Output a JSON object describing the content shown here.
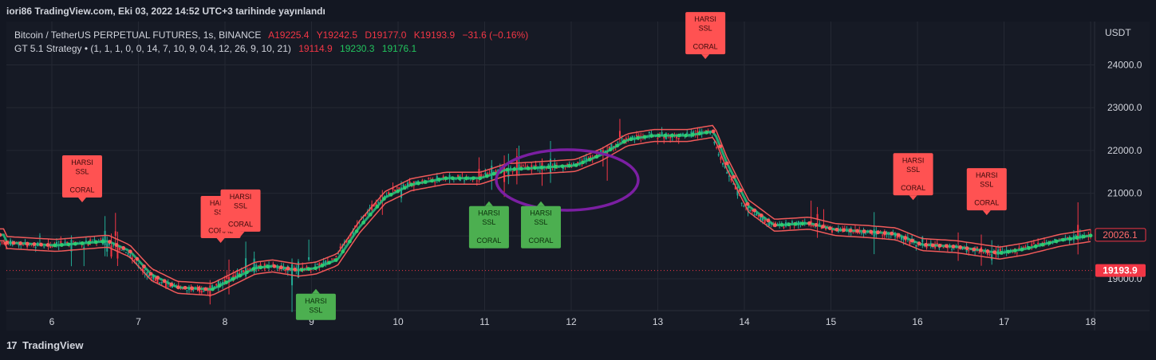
{
  "header": {
    "published": "iori86 TradingView.com, Eki 03, 2022 14:52 UTC+3 tarihinde yayınlandı"
  },
  "legend": {
    "symbol": "Bitcoin / TetherUS PERPETUAL FUTURES, 1s, BINANCE",
    "open": "A19225.4",
    "high": "Y19242.5",
    "low": "D19177.0",
    "close": "K19193.9",
    "change": "−31.6 (−0.16%)",
    "strategy": "GT 5.1 Strategy • (1, 1, 1, 0, 0, 14, 7, 10, 9, 0.4, 12, 26, 9, 10, 21)",
    "v1": "19114.9",
    "v2": "19230.3",
    "v3": "19176.1"
  },
  "footer": {
    "logo": "17",
    "brand": "TradingView"
  },
  "colors": {
    "bg": "#161a25",
    "up": "#22ab94",
    "down": "#f23645",
    "band": "#f05a5a",
    "signal_green": "#4caf50",
    "signal_red": "#ff5252",
    "circle": "#7b1fa2"
  },
  "chart_data": {
    "type": "candlestick",
    "y_axis_label": "USDT",
    "ylim": [
      18300,
      25000
    ],
    "xlim": [
      5.4,
      18.0
    ],
    "y_ticks": [
      "24000.0",
      "23000.0",
      "22000.0",
      "21000.0",
      "20000.0",
      "19000.0"
    ],
    "y_tick_values": [
      24000,
      23000,
      22000,
      21000,
      20000,
      19000
    ],
    "x_ticks": [
      "6",
      "7",
      "8",
      "9",
      "10",
      "11",
      "12",
      "13",
      "14",
      "15",
      "16",
      "17",
      "18"
    ],
    "x_tick_values": [
      6,
      7,
      8,
      9,
      10,
      11,
      12,
      13,
      14,
      15,
      16,
      17,
      18
    ],
    "price_path": [
      [
        5.4,
        19850
      ],
      [
        6.0,
        19780
      ],
      [
        6.6,
        19880
      ],
      [
        6.85,
        19650
      ],
      [
        7.1,
        19100
      ],
      [
        7.4,
        18800
      ],
      [
        7.8,
        18750
      ],
      [
        8.0,
        18950
      ],
      [
        8.3,
        19250
      ],
      [
        8.5,
        19300
      ],
      [
        8.8,
        19200
      ],
      [
        9.0,
        19250
      ],
      [
        9.25,
        19450
      ],
      [
        9.5,
        20200
      ],
      [
        9.8,
        20900
      ],
      [
        10.1,
        21200
      ],
      [
        10.5,
        21350
      ],
      [
        10.9,
        21350
      ],
      [
        11.2,
        21550
      ],
      [
        11.6,
        21600
      ],
      [
        12.0,
        21650
      ],
      [
        12.3,
        21900
      ],
      [
        12.6,
        22250
      ],
      [
        12.9,
        22350
      ],
      [
        13.3,
        22350
      ],
      [
        13.6,
        22450
      ],
      [
        13.75,
        21700
      ],
      [
        14.0,
        20700
      ],
      [
        14.3,
        20250
      ],
      [
        14.7,
        20300
      ],
      [
        15.0,
        20150
      ],
      [
        15.4,
        20100
      ],
      [
        15.7,
        20050
      ],
      [
        16.0,
        19800
      ],
      [
        16.4,
        19750
      ],
      [
        16.9,
        19600
      ],
      [
        17.2,
        19700
      ],
      [
        17.6,
        19900
      ],
      [
        18.0,
        20026
      ]
    ],
    "last_price": "19193.9",
    "last_price_value": 19193.9,
    "band_price": "20026.1",
    "band_price_value": 20026.1,
    "signals": [
      {
        "kind": "sell",
        "x": 6.35,
        "y": 20900,
        "lines": [
          "HARSI",
          "SSL",
          "",
          "CORAL"
        ]
      },
      {
        "kind": "sell",
        "x": 7.95,
        "y": 19950,
        "lines": [
          "HARSI",
          "SSL",
          "",
          "CORAL"
        ]
      },
      {
        "kind": "sell",
        "x": 8.18,
        "y": 20100,
        "lines": [
          "HARSI",
          "SSL",
          "",
          "CORAL"
        ]
      },
      {
        "kind": "buy",
        "x": 9.05,
        "y": 18650,
        "lines": [
          "HARSI",
          "SSL"
        ]
      },
      {
        "kind": "buy",
        "x": 11.05,
        "y": 20700,
        "lines": [
          "HARSI",
          "SSL",
          "",
          "CORAL"
        ]
      },
      {
        "kind": "buy",
        "x": 11.65,
        "y": 20700,
        "lines": [
          "HARSI",
          "SSL",
          "",
          "CORAL"
        ]
      },
      {
        "kind": "sell",
        "x": 13.55,
        "y": 24250,
        "lines": [
          "HARSI",
          "SSL",
          "",
          "CORAL"
        ]
      },
      {
        "kind": "sell",
        "x": 15.95,
        "y": 20950,
        "lines": [
          "HARSI",
          "SSL",
          "",
          "CORAL"
        ]
      },
      {
        "kind": "sell",
        "x": 16.8,
        "y": 20600,
        "lines": [
          "HARSI",
          "SSL",
          "",
          "CORAL"
        ]
      }
    ]
  }
}
